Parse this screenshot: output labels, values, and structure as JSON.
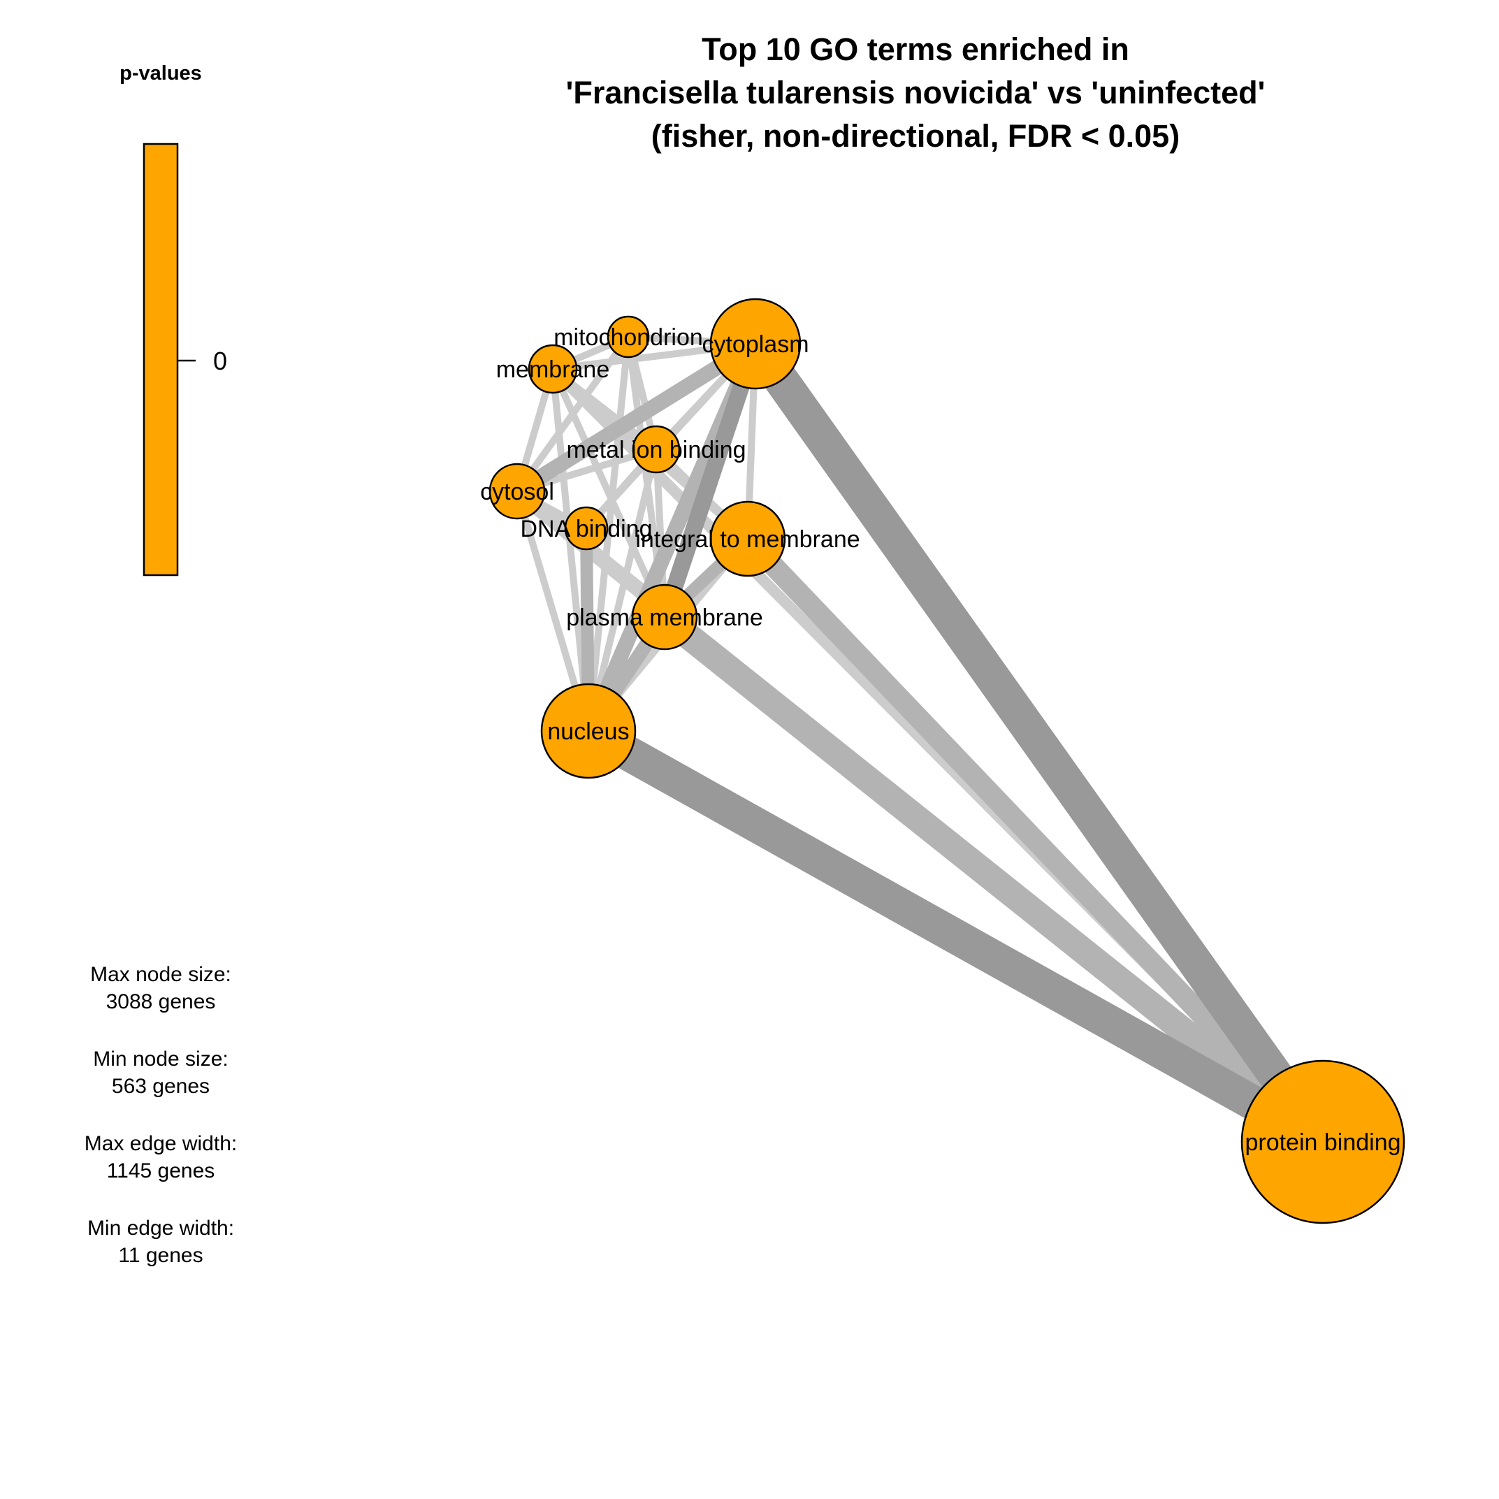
{
  "title": [
    "Top 10 GO terms enriched in",
    "'Francisella tularensis novicida' vs 'uninfected'",
    "(fisher, non-directional, FDR < 0.05)"
  ],
  "legend": {
    "title": "p-values",
    "tick_label": "0",
    "color": "#FFA500"
  },
  "stats": {
    "max_node_label": "Max node size:",
    "max_node_value": "3088 genes",
    "min_node_label": "Min node size:",
    "min_node_value": "563 genes",
    "max_edge_label": "Max edge width:",
    "max_edge_value": "1145 genes",
    "min_edge_label": "Min edge width:",
    "min_edge_value": "11 genes"
  },
  "colors": {
    "node_fill": "#FFA500",
    "edge_dark": "#999999",
    "edge_mid": "#B3B3B3",
    "edge_light": "#CCCCCC"
  },
  "nodes": [
    {
      "id": "mitochondrion",
      "label": "mitochondrion"
    },
    {
      "id": "membrane",
      "label": "membrane"
    },
    {
      "id": "cytoplasm",
      "label": "cytoplasm"
    },
    {
      "id": "metal_ion_binding",
      "label": "metal ion binding"
    },
    {
      "id": "cytosol",
      "label": "cytosol"
    },
    {
      "id": "dna_binding",
      "label": "DNA binding"
    },
    {
      "id": "integral_to_membrane",
      "label": "integral to membrane"
    },
    {
      "id": "plasma_membrane",
      "label": "plasma membrane"
    },
    {
      "id": "nucleus",
      "label": "nucleus"
    },
    {
      "id": "protein_binding",
      "label": "protein binding"
    }
  ],
  "edges": [
    {
      "source": "cytoplasm",
      "target": "protein_binding",
      "tone": "dark"
    },
    {
      "source": "nucleus",
      "target": "protein_binding",
      "tone": "dark"
    },
    {
      "source": "plasma_membrane",
      "target": "protein_binding",
      "tone": "mid"
    },
    {
      "source": "integral_to_membrane",
      "target": "protein_binding",
      "tone": "mid"
    },
    {
      "source": "cytosol",
      "target": "protein_binding",
      "tone": "light"
    },
    {
      "source": "membrane",
      "target": "protein_binding",
      "tone": "light"
    },
    {
      "source": "cytoplasm",
      "target": "nucleus",
      "tone": "mid"
    },
    {
      "source": "cytoplasm",
      "target": "plasma_membrane",
      "tone": "dark"
    },
    {
      "source": "cytoplasm",
      "target": "cytosol",
      "tone": "mid"
    },
    {
      "source": "cytoplasm",
      "target": "membrane",
      "tone": "light"
    },
    {
      "source": "cytoplasm",
      "target": "mitochondrion",
      "tone": "light"
    },
    {
      "source": "cytoplasm",
      "target": "metal_ion_binding",
      "tone": "light"
    },
    {
      "source": "cytoplasm",
      "target": "integral_to_membrane",
      "tone": "light"
    },
    {
      "source": "cytoplasm",
      "target": "dna_binding",
      "tone": "light"
    },
    {
      "source": "nucleus",
      "target": "cytosol",
      "tone": "light"
    },
    {
      "source": "nucleus",
      "target": "plasma_membrane",
      "tone": "mid"
    },
    {
      "source": "nucleus",
      "target": "dna_binding",
      "tone": "mid"
    },
    {
      "source": "nucleus",
      "target": "integral_to_membrane",
      "tone": "light"
    },
    {
      "source": "nucleus",
      "target": "metal_ion_binding",
      "tone": "light"
    },
    {
      "source": "nucleus",
      "target": "membrane",
      "tone": "light"
    },
    {
      "source": "nucleus",
      "target": "mitochondrion",
      "tone": "light"
    },
    {
      "source": "plasma_membrane",
      "target": "integral_to_membrane",
      "tone": "mid"
    },
    {
      "source": "plasma_membrane",
      "target": "membrane",
      "tone": "light"
    },
    {
      "source": "plasma_membrane",
      "target": "cytosol",
      "tone": "light"
    },
    {
      "source": "plasma_membrane",
      "target": "metal_ion_binding",
      "tone": "light"
    },
    {
      "source": "plasma_membrane",
      "target": "mitochondrion",
      "tone": "light"
    },
    {
      "source": "membrane",
      "target": "integral_to_membrane",
      "tone": "light"
    },
    {
      "source": "membrane",
      "target": "mitochondrion",
      "tone": "light"
    },
    {
      "source": "membrane",
      "target": "cytosol",
      "tone": "light"
    },
    {
      "source": "membrane",
      "target": "metal_ion_binding",
      "tone": "light"
    },
    {
      "source": "cytosol",
      "target": "mitochondrion",
      "tone": "light"
    },
    {
      "source": "cytosol",
      "target": "metal_ion_binding",
      "tone": "light"
    },
    {
      "source": "cytosol",
      "target": "dna_binding",
      "tone": "light"
    },
    {
      "source": "metal_ion_binding",
      "target": "dna_binding",
      "tone": "light"
    },
    {
      "source": "mitochondrion",
      "target": "metal_ion_binding",
      "tone": "light"
    },
    {
      "source": "integral_to_membrane",
      "target": "metal_ion_binding",
      "tone": "light"
    }
  ]
}
